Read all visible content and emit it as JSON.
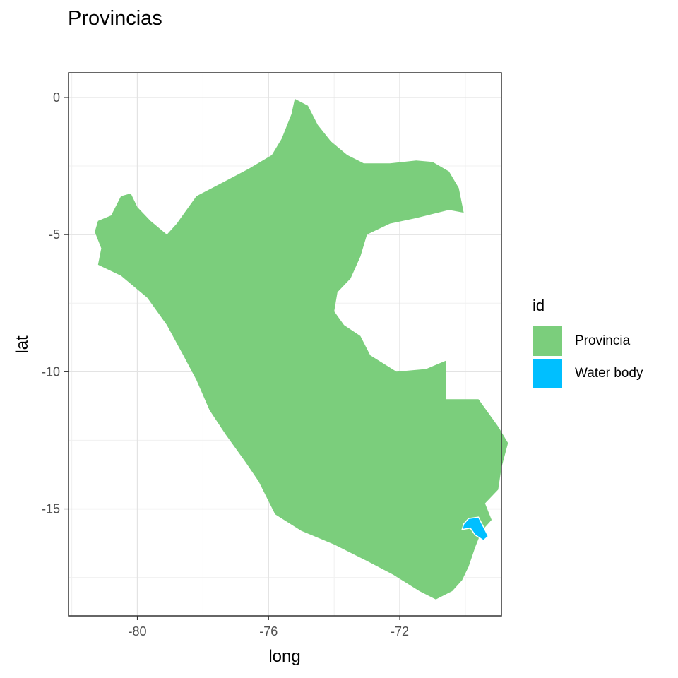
{
  "title": "Provincias",
  "chart_data": {
    "type": "map",
    "title": "Provincias",
    "xlabel": "long",
    "ylabel": "lat",
    "xlim": [
      -82.1,
      -68.9
    ],
    "ylim": [
      -18.9,
      0.9
    ],
    "x_ticks": [
      -80,
      -76,
      -72
    ],
    "x_tick_labels": [
      "-80",
      "-76",
      "-72"
    ],
    "y_ticks": [
      0,
      -5,
      -10,
      -15
    ],
    "y_tick_labels": [
      "0",
      "-5",
      "-10",
      "-15"
    ],
    "grid": true,
    "legend": {
      "title": "id",
      "position": "right",
      "entries": [
        {
          "label": "Provincia",
          "color": "#7BCE7C"
        },
        {
          "label": "Water body",
          "color": "#00BFFF"
        }
      ]
    },
    "series": [
      {
        "name": "Provincia",
        "color": "#7BCE7C",
        "polygon": [
          [
            -75.2,
            -0.05
          ],
          [
            -74.8,
            -0.3
          ],
          [
            -74.5,
            -1.0
          ],
          [
            -74.1,
            -1.6
          ],
          [
            -73.6,
            -2.1
          ],
          [
            -73.1,
            -2.4
          ],
          [
            -72.3,
            -2.4
          ],
          [
            -71.5,
            -2.3
          ],
          [
            -71.0,
            -2.35
          ],
          [
            -70.5,
            -2.7
          ],
          [
            -70.2,
            -3.3
          ],
          [
            -70.05,
            -4.2
          ],
          [
            -70.5,
            -4.1
          ],
          [
            -71.5,
            -4.4
          ],
          [
            -72.3,
            -4.6
          ],
          [
            -73.0,
            -5.0
          ],
          [
            -73.2,
            -5.8
          ],
          [
            -73.5,
            -6.6
          ],
          [
            -73.9,
            -7.1
          ],
          [
            -74.0,
            -7.8
          ],
          [
            -73.7,
            -8.3
          ],
          [
            -73.2,
            -8.7
          ],
          [
            -72.9,
            -9.4
          ],
          [
            -72.1,
            -10.0
          ],
          [
            -71.2,
            -9.9
          ],
          [
            -70.6,
            -9.6
          ],
          [
            -70.6,
            -11.0
          ],
          [
            -69.6,
            -11.0
          ],
          [
            -69.0,
            -12.0
          ],
          [
            -68.7,
            -12.6
          ],
          [
            -68.9,
            -13.5
          ],
          [
            -69.0,
            -14.3
          ],
          [
            -69.4,
            -14.8
          ],
          [
            -69.2,
            -15.4
          ],
          [
            -69.5,
            -15.8
          ],
          [
            -69.7,
            -16.4
          ],
          [
            -69.9,
            -17.1
          ],
          [
            -70.1,
            -17.6
          ],
          [
            -70.4,
            -18.0
          ],
          [
            -70.9,
            -18.3
          ],
          [
            -71.4,
            -18.0
          ],
          [
            -72.2,
            -17.4
          ],
          [
            -73.0,
            -16.9
          ],
          [
            -74.0,
            -16.3
          ],
          [
            -75.0,
            -15.8
          ],
          [
            -75.8,
            -15.2
          ],
          [
            -76.3,
            -14.0
          ],
          [
            -76.7,
            -13.3
          ],
          [
            -77.3,
            -12.3
          ],
          [
            -77.8,
            -11.4
          ],
          [
            -78.2,
            -10.3
          ],
          [
            -78.6,
            -9.4
          ],
          [
            -79.1,
            -8.3
          ],
          [
            -79.7,
            -7.3
          ],
          [
            -80.5,
            -6.5
          ],
          [
            -81.2,
            -6.1
          ],
          [
            -81.1,
            -5.5
          ],
          [
            -81.3,
            -4.9
          ],
          [
            -81.2,
            -4.5
          ],
          [
            -80.8,
            -4.3
          ],
          [
            -80.5,
            -3.6
          ],
          [
            -80.2,
            -3.5
          ],
          [
            -80.0,
            -4.0
          ],
          [
            -79.6,
            -4.5
          ],
          [
            -79.1,
            -5.0
          ],
          [
            -78.8,
            -4.6
          ],
          [
            -78.2,
            -3.6
          ],
          [
            -77.4,
            -3.1
          ],
          [
            -76.6,
            -2.6
          ],
          [
            -75.9,
            -2.1
          ],
          [
            -75.6,
            -1.5
          ],
          [
            -75.3,
            -0.6
          ]
        ]
      },
      {
        "name": "Water body",
        "color": "#00BFFF",
        "polygon": [
          [
            -69.9,
            -15.35
          ],
          [
            -69.6,
            -15.3
          ],
          [
            -69.45,
            -15.65
          ],
          [
            -69.3,
            -16.0
          ],
          [
            -69.45,
            -16.15
          ],
          [
            -69.7,
            -15.95
          ],
          [
            -69.85,
            -15.7
          ],
          [
            -70.1,
            -15.75
          ],
          [
            -70.05,
            -15.55
          ]
        ]
      }
    ]
  }
}
